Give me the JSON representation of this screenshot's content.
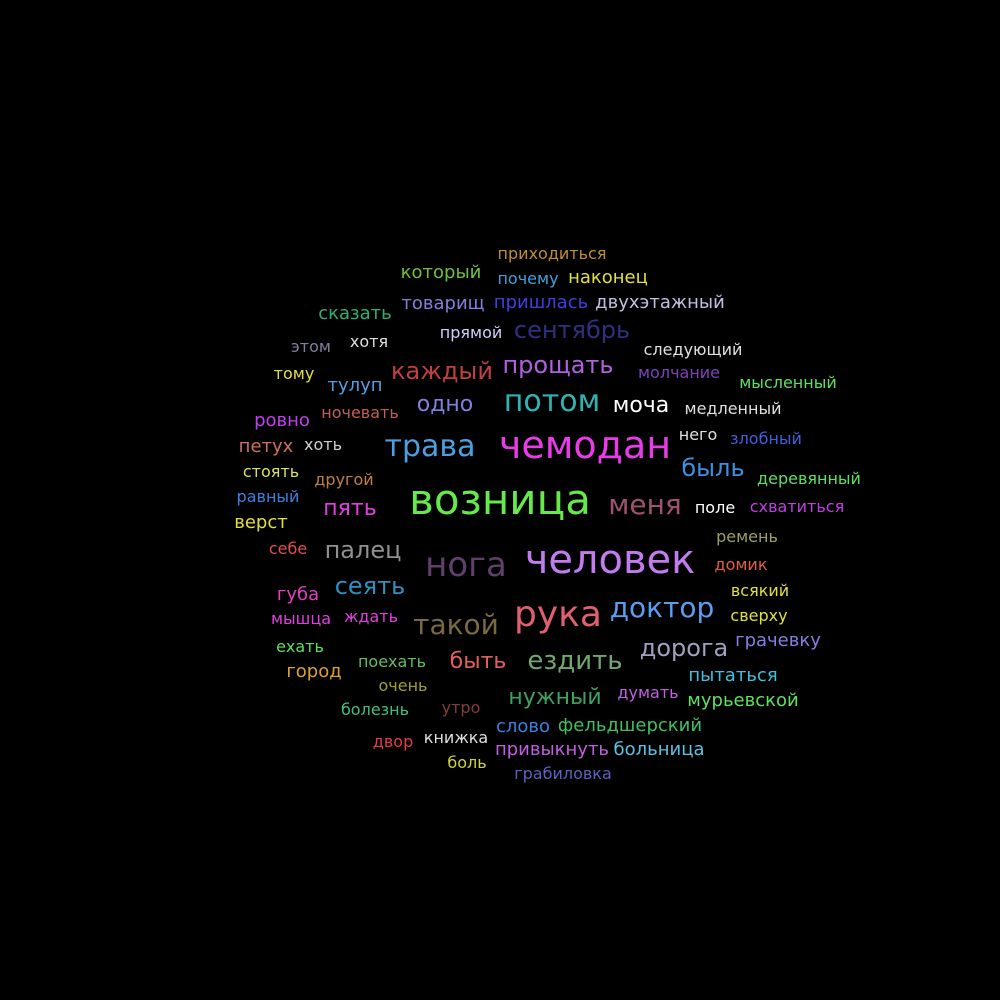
{
  "words": [
    {
      "text": "возница",
      "color": "#66e94a"
    },
    {
      "text": "человек",
      "color": "#c27cf0"
    },
    {
      "text": "чемодан",
      "color": "#e83ce8"
    },
    {
      "text": "рука",
      "color": "#e06070"
    },
    {
      "text": "потом",
      "color": "#2fb3b3"
    },
    {
      "text": "нога",
      "color": "#60406a"
    },
    {
      "text": "трава",
      "color": "#4aa0e0"
    },
    {
      "text": "доктор",
      "color": "#5a9ef0"
    },
    {
      "text": "меня",
      "color": "#a05070"
    },
    {
      "text": "такой",
      "color": "#7a6a40"
    },
    {
      "text": "ездить",
      "color": "#70a870"
    },
    {
      "text": "прощать",
      "color": "#b060e0"
    },
    {
      "text": "каждый",
      "color": "#c04040"
    },
    {
      "text": "быль",
      "color": "#4090e0"
    },
    {
      "text": "пять",
      "color": "#e040e0"
    },
    {
      "text": "сеять",
      "color": "#3090c0"
    },
    {
      "text": "дорога",
      "color": "#a0a0c0"
    },
    {
      "text": "палец",
      "color": "#909090"
    },
    {
      "text": "сентябрь",
      "color": "#303080"
    },
    {
      "text": "одно",
      "color": "#8080e0"
    },
    {
      "text": "быть",
      "color": "#e06060"
    },
    {
      "text": "нужный",
      "color": "#40a060"
    },
    {
      "text": "моча",
      "color": "#ffffff"
    },
    {
      "text": "пришлась",
      "color": "#4040e0"
    },
    {
      "text": "приходиться",
      "color": "#c09030"
    },
    {
      "text": "двухэтажный",
      "color": "#c0c0e0"
    },
    {
      "text": "наконец",
      "color": "#e0e040"
    },
    {
      "text": "почему",
      "color": "#40a0e0"
    },
    {
      "text": "который",
      "color": "#70c040"
    },
    {
      "text": "товарищ",
      "color": "#8080e0"
    },
    {
      "text": "сказать",
      "color": "#30b070"
    },
    {
      "text": "прямой",
      "color": "#d0d0ff"
    },
    {
      "text": "хотя",
      "color": "#e0e0e0"
    },
    {
      "text": "этом",
      "color": "#8080a0"
    },
    {
      "text": "тому",
      "color": "#e0e040"
    },
    {
      "text": "тулуп",
      "color": "#50a0e0"
    },
    {
      "text": "ровно",
      "color": "#c040f0"
    },
    {
      "text": "ночевать",
      "color": "#c06050"
    },
    {
      "text": "петух",
      "color": "#d07060"
    },
    {
      "text": "хоть",
      "color": "#d0d0d0"
    },
    {
      "text": "стоять",
      "color": "#e0e060"
    },
    {
      "text": "другой",
      "color": "#c08040"
    },
    {
      "text": "равный",
      "color": "#4080e0"
    },
    {
      "text": "верст",
      "color": "#e0e040"
    },
    {
      "text": "себе",
      "color": "#e05050"
    },
    {
      "text": "губа",
      "color": "#e040c0"
    },
    {
      "text": "мышца",
      "color": "#e040e0"
    },
    {
      "text": "ждать",
      "color": "#e040e0"
    },
    {
      "text": "ехать",
      "color": "#60e060"
    },
    {
      "text": "город",
      "color": "#e0a030"
    },
    {
      "text": "поехать",
      "color": "#60c060"
    },
    {
      "text": "очень",
      "color": "#a0a030"
    },
    {
      "text": "болезнь",
      "color": "#40c080"
    },
    {
      "text": "утро",
      "color": "#804030"
    },
    {
      "text": "двор",
      "color": "#e04040"
    },
    {
      "text": "книжка",
      "color": "#e0e0e0"
    },
    {
      "text": "боль",
      "color": "#d0d040"
    },
    {
      "text": "слово",
      "color": "#4080e0"
    },
    {
      "text": "фельдшерский",
      "color": "#40c060"
    },
    {
      "text": "привыкнуть",
      "color": "#c060e0"
    },
    {
      "text": "больница",
      "color": "#60c0e0"
    },
    {
      "text": "грабиловка",
      "color": "#6060c0"
    },
    {
      "text": "мурьевской",
      "color": "#60e060"
    },
    {
      "text": "думать",
      "color": "#c060e0"
    },
    {
      "text": "пытаться",
      "color": "#40c0e0"
    },
    {
      "text": "грачевку",
      "color": "#8080e0"
    },
    {
      "text": "сверху",
      "color": "#e0e040"
    },
    {
      "text": "всякий",
      "color": "#e0e040"
    },
    {
      "text": "домик",
      "color": "#e06040"
    },
    {
      "text": "ремень",
      "color": "#a0a060"
    },
    {
      "text": "поле",
      "color": "#ffffff"
    },
    {
      "text": "схватиться",
      "color": "#c040e0"
    },
    {
      "text": "деревянный",
      "color": "#60e060"
    },
    {
      "text": "злобный",
      "color": "#4060e0"
    },
    {
      "text": "него",
      "color": "#e0e0e0"
    },
    {
      "text": "медленный",
      "color": "#e0e0e0"
    },
    {
      "text": "мысленный",
      "color": "#60e060"
    },
    {
      "text": "молчание",
      "color": "#8040c0"
    },
    {
      "text": "следующий",
      "color": "#e0e0e0"
    }
  ]
}
